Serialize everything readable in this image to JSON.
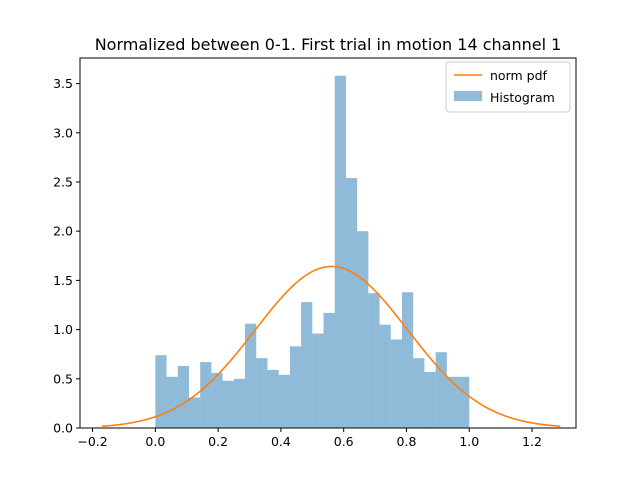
{
  "chart_data": {
    "type": "bar",
    "title": "Normalized between 0-1. First trial in motion 14 channel 1",
    "xlabel": "",
    "ylabel": "",
    "xlim": [
      -0.24,
      1.34
    ],
    "ylim": [
      0,
      3.76
    ],
    "xticks": [
      "−0.2",
      "0.0",
      "0.2",
      "0.4",
      "0.6",
      "0.8",
      "1.0",
      "1.2"
    ],
    "xtick_values": [
      -0.2,
      0.0,
      0.2,
      0.4,
      0.6,
      0.8,
      1.0,
      1.2
    ],
    "yticks": [
      "0.0",
      "0.5",
      "1.0",
      "1.5",
      "2.0",
      "2.5",
      "3.0",
      "3.5"
    ],
    "ytick_values": [
      0.0,
      0.5,
      1.0,
      1.5,
      2.0,
      2.5,
      3.0,
      3.5
    ],
    "grid": false,
    "legend_position": "top-right",
    "histogram": {
      "name": "Histogram",
      "color": "#1f77b4",
      "opacity": 0.5,
      "bin_edges": [
        0.0,
        0.0357,
        0.0714,
        0.1071,
        0.1429,
        0.1786,
        0.2143,
        0.25,
        0.2857,
        0.3214,
        0.3571,
        0.3929,
        0.4286,
        0.4643,
        0.5,
        0.5357,
        0.5714,
        0.6071,
        0.6429,
        0.6786,
        0.7143,
        0.75,
        0.7857,
        0.8214,
        0.8571,
        0.8929,
        0.9286,
        0.9643,
        1.0
      ],
      "values": [
        0.74,
        0.52,
        0.63,
        0.31,
        0.67,
        0.56,
        0.48,
        0.5,
        1.06,
        0.71,
        0.59,
        0.54,
        0.83,
        1.28,
        0.96,
        1.17,
        3.58,
        2.54,
        2.0,
        1.37,
        1.05,
        0.9,
        1.38,
        0.71,
        0.57,
        0.77,
        0.52,
        0.52
      ]
    },
    "pdf": {
      "name": "norm pdf",
      "color": "#ff7f0e",
      "mean": 0.561,
      "std": 0.243,
      "x_range": [
        -0.17,
        1.29
      ]
    }
  }
}
